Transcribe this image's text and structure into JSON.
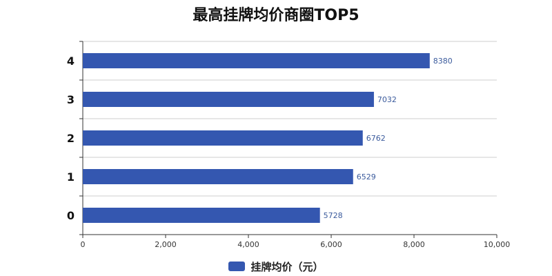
{
  "chart_data": {
    "type": "bar",
    "orientation": "horizontal",
    "title": "最高挂牌均价商圈TOP5",
    "xlabel": "",
    "ylabel": "",
    "categories": [
      "4",
      "3",
      "2",
      "1",
      "0"
    ],
    "series": [
      {
        "name": "挂牌均价（元）",
        "values": [
          8380,
          7032,
          6762,
          6529,
          5728
        ]
      }
    ],
    "xlim": [
      0,
      10000
    ],
    "x_ticks": [
      "0",
      "2,000",
      "4,000",
      "6,000",
      "8,000",
      "10,000"
    ],
    "grid": true,
    "legend_position": "bottom-center",
    "data_labels": true,
    "colors": {
      "bar": "#3457b0",
      "data_label": "#3a5a9c",
      "grid": "#cccccc",
      "axis": "#333333"
    }
  }
}
